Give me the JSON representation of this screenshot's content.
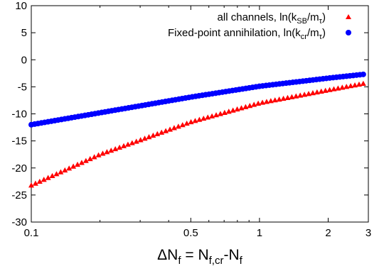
{
  "chart_data": {
    "type": "scatter",
    "xscale": "log",
    "xlim": [
      0.1,
      3.0
    ],
    "ylim": [
      -30,
      10
    ],
    "xticks": [
      0.1,
      0.5,
      1,
      2,
      3
    ],
    "xtick_labels": [
      "0.1",
      "0.5",
      "1",
      "2",
      "3"
    ],
    "yticks": [
      -30,
      -25,
      -20,
      -15,
      -10,
      -5,
      0,
      5,
      10
    ],
    "ytick_labels": [
      "-30",
      "-25",
      "-20",
      "-15",
      "-10",
      "-5",
      "0",
      "5",
      "10"
    ],
    "xlabel": "ΔN_f = N_f,cr-N_f",
    "ylabel": "",
    "grid": false,
    "legend_position": "top-right",
    "series": [
      {
        "name": "all channels, ln(k_SB/m_τ)",
        "marker": "triangle",
        "color": "#ff0000",
        "x_range": [
          0.1,
          2.85
        ],
        "y_at_start": -23.2,
        "y_at_end": -4.4,
        "points_sampled": [
          [
            0.1,
            -23.2
          ],
          [
            0.2,
            -17.5
          ],
          [
            0.5,
            -11.5
          ],
          [
            1.0,
            -8.0
          ],
          [
            2.0,
            -5.6
          ],
          [
            2.85,
            -4.4
          ]
        ],
        "count": 80
      },
      {
        "name": "Fixed-point annihilation, ln(k_cr/m_τ)",
        "marker": "circle",
        "color": "#0000ff",
        "x_range": [
          0.1,
          2.85
        ],
        "y_at_start": -12.0,
        "y_at_end": -2.7,
        "points_sampled": [
          [
            0.1,
            -12.0
          ],
          [
            0.2,
            -9.8
          ],
          [
            0.5,
            -6.9
          ],
          [
            1.0,
            -4.9
          ],
          [
            2.0,
            -3.4
          ],
          [
            2.85,
            -2.7
          ]
        ],
        "count": 100
      }
    ],
    "legend": {
      "entries": [
        {
          "prefix": "all channels, ln(k",
          "sub": "SB",
          "mid": "/m",
          "sub2": "τ",
          "suffix": ")"
        },
        {
          "prefix": "Fixed-point annihilation, ln(k",
          "sub": "cr",
          "mid": "/m",
          "sub2": "τ",
          "suffix": ")"
        }
      ]
    }
  }
}
